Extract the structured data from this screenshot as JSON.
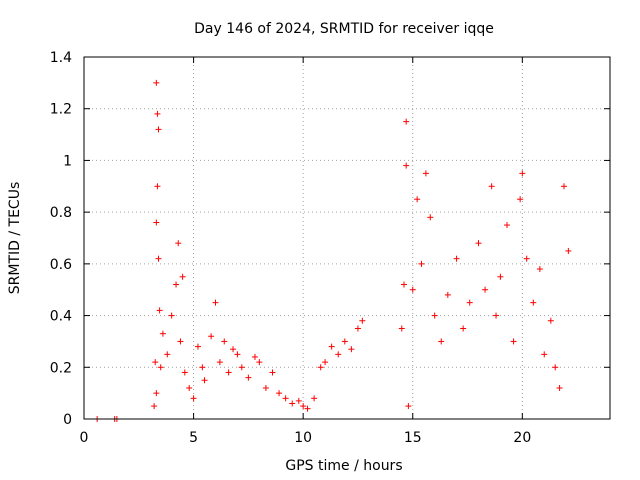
{
  "chart_data": {
    "type": "scatter",
    "title": "Day 146 of 2024, SRMTID for receiver iqqe",
    "xlabel": "GPS time / hours",
    "ylabel": "SRMTID / TECUs",
    "xlim": [
      0,
      24
    ],
    "ylim": [
      0,
      1.4
    ],
    "xticks": [
      "0",
      "5",
      "10",
      "15",
      "20"
    ],
    "xtick_values": [
      0,
      5,
      10,
      15,
      20
    ],
    "yticks": [
      "0",
      "0.2",
      "0.4",
      "0.6",
      "0.8",
      "1",
      "1.2",
      "1.4"
    ],
    "ytick_values": [
      0,
      0.2,
      0.4,
      0.6,
      0.8,
      1.0,
      1.2,
      1.4
    ],
    "grid": true,
    "marker": "+",
    "color": "#ff0000",
    "series": [
      {
        "name": "SRMTID",
        "x": [
          0.6,
          1.4,
          1.5,
          3.2,
          3.25,
          3.3,
          3.3,
          3.35,
          3.35,
          3.4,
          3.4,
          3.45,
          3.5,
          3.3,
          3.6,
          3.8,
          4.0,
          4.2,
          4.3,
          4.4,
          4.5,
          4.6,
          4.8,
          5.0,
          5.2,
          5.4,
          5.5,
          5.8,
          6.0,
          6.2,
          6.4,
          6.6,
          6.8,
          7.0,
          7.2,
          7.5,
          7.8,
          8.0,
          8.3,
          8.6,
          8.9,
          9.2,
          9.5,
          9.8,
          10.0,
          10.2,
          10.5,
          10.8,
          11.0,
          11.3,
          11.6,
          11.9,
          12.2,
          12.5,
          12.7,
          14.5,
          14.6,
          14.7,
          14.7,
          14.8,
          15.0,
          15.2,
          15.4,
          15.6,
          15.8,
          16.0,
          16.3,
          16.6,
          17.0,
          17.3,
          17.6,
          18.0,
          18.3,
          18.6,
          18.8,
          19.0,
          19.3,
          19.6,
          19.9,
          20.0,
          20.2,
          20.5,
          20.8,
          21.0,
          21.3,
          21.5,
          21.7,
          21.9,
          22.1
        ],
        "y": [
          0.0,
          0.0,
          0.0,
          0.05,
          0.22,
          0.76,
          1.3,
          0.9,
          1.18,
          0.62,
          1.12,
          0.42,
          0.2,
          0.1,
          0.33,
          0.25,
          0.4,
          0.52,
          0.68,
          0.3,
          0.55,
          0.18,
          0.12,
          0.08,
          0.28,
          0.2,
          0.15,
          0.32,
          0.45,
          0.22,
          0.3,
          0.18,
          0.27,
          0.25,
          0.2,
          0.16,
          0.24,
          0.22,
          0.12,
          0.18,
          0.1,
          0.08,
          0.06,
          0.07,
          0.05,
          0.04,
          0.08,
          0.2,
          0.22,
          0.28,
          0.25,
          0.3,
          0.27,
          0.35,
          0.38,
          0.35,
          0.52,
          1.15,
          0.98,
          0.05,
          0.5,
          0.85,
          0.6,
          0.95,
          0.78,
          0.4,
          0.3,
          0.48,
          0.62,
          0.35,
          0.45,
          0.68,
          0.5,
          0.9,
          0.4,
          0.55,
          0.75,
          0.3,
          0.85,
          0.95,
          0.62,
          0.45,
          0.58,
          0.25,
          0.38,
          0.2,
          0.12,
          0.9,
          0.65
        ]
      }
    ]
  }
}
